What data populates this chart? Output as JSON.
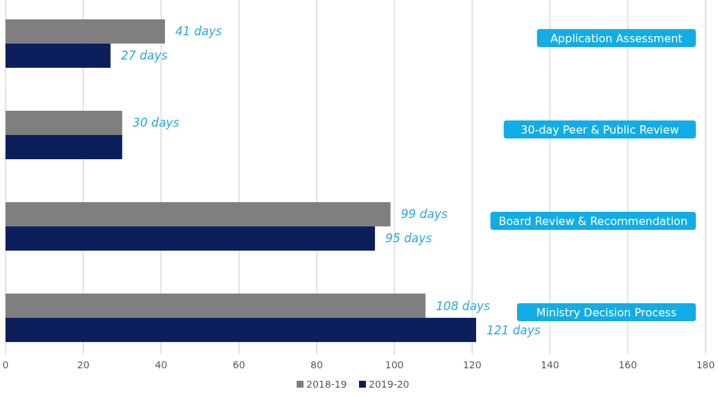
{
  "chart_data": {
    "type": "bar",
    "orientation": "horizontal",
    "categories": [
      "Application Assessment",
      "30-day Peer & Public Review",
      "Board Review & Recommendation",
      "Ministry Decision Process"
    ],
    "series": [
      {
        "name": "2018-19",
        "color": "#7f7f7f",
        "values": [
          41,
          30,
          99,
          108
        ],
        "value_labels": [
          "41 days",
          "30 days",
          "99 days",
          "108 days"
        ]
      },
      {
        "name": "2019-20",
        "color": "#0c1f5c",
        "values": [
          27,
          30,
          95,
          121
        ],
        "value_labels": [
          "27 days",
          null,
          "95 days",
          "121 days"
        ]
      }
    ],
    "xlim": [
      0,
      180
    ],
    "xticks": [
      0,
      20,
      40,
      60,
      80,
      100,
      120,
      140,
      160,
      180
    ],
    "grid": "x",
    "legend": "bottom"
  }
}
